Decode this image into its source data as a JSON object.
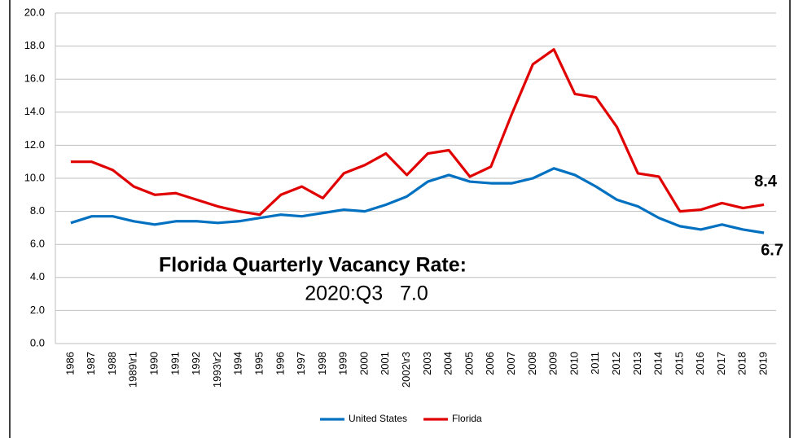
{
  "chart_data": {
    "type": "line",
    "categories": [
      "1986",
      "1987",
      "1988",
      "1989\\r1",
      "1990",
      "1991",
      "1992",
      "1993\\r2",
      "1994",
      "1995",
      "1996",
      "1997",
      "1998",
      "1999",
      "2000",
      "2001",
      "2002\\r3",
      "2003",
      "2004",
      "2005",
      "2006",
      "2007",
      "2008",
      "2009",
      "2010",
      "2011",
      "2012",
      "2013",
      "2014",
      "2015",
      "2016",
      "2017",
      "2018",
      "2019"
    ],
    "series": [
      {
        "name": "United States",
        "color": "#0070c0",
        "values": [
          7.3,
          7.7,
          7.7,
          7.4,
          7.2,
          7.4,
          7.4,
          7.3,
          7.4,
          7.6,
          7.8,
          7.7,
          7.9,
          8.1,
          8.0,
          8.4,
          8.9,
          9.8,
          10.2,
          9.8,
          9.7,
          9.7,
          10.0,
          10.6,
          10.2,
          9.5,
          8.7,
          8.3,
          7.6,
          7.1,
          6.9,
          7.2,
          6.9,
          6.7
        ]
      },
      {
        "name": "Florida",
        "color": "#e00000",
        "values": [
          11.0,
          11.0,
          10.5,
          9.5,
          9.0,
          9.1,
          8.7,
          8.3,
          8.0,
          7.8,
          9.0,
          9.5,
          8.8,
          10.3,
          10.8,
          11.5,
          10.2,
          11.5,
          11.7,
          10.1,
          10.7,
          13.9,
          16.9,
          17.8,
          15.1,
          14.9,
          13.1,
          10.3,
          10.1,
          8.0,
          8.1,
          8.5,
          8.2,
          8.4
        ]
      }
    ],
    "ylim": [
      0,
      20
    ],
    "yticks": [
      {
        "value": 0,
        "label": "0.0"
      },
      {
        "value": 2,
        "label": "2.0"
      },
      {
        "value": 4,
        "label": "4.0"
      },
      {
        "value": 6,
        "label": "6.0"
      },
      {
        "value": 8,
        "label": "8.0"
      },
      {
        "value": 10,
        "label": "10.0"
      },
      {
        "value": 12,
        "label": "12.0"
      },
      {
        "value": 14,
        "label": "14.0"
      },
      {
        "value": 16,
        "label": "16.0"
      },
      {
        "value": 18,
        "label": "18.0"
      },
      {
        "value": 20,
        "label": "20.0"
      }
    ],
    "grid": true,
    "legend": "bottom",
    "annotations": [
      "Florida Quarterly Vacancy Rate:",
      "2020:Q3   7.0"
    ]
  }
}
